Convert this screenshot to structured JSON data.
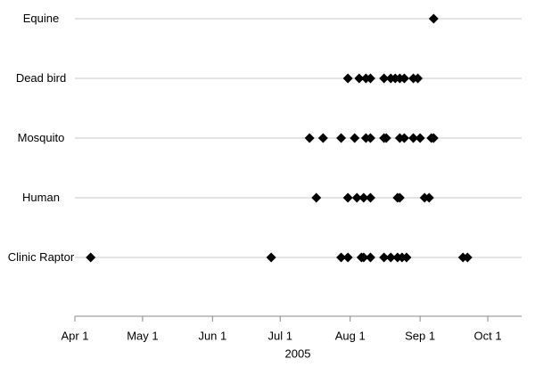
{
  "chart_data": {
    "type": "scatter",
    "xlabel": "2005",
    "marker_color": "#000000",
    "grid": true,
    "xlim": [
      "2005-04-01",
      "2005-10-16"
    ],
    "xticks": [
      {
        "value": "2005-04-01",
        "label": "Apr 1"
      },
      {
        "value": "2005-05-01",
        "label": "May 1"
      },
      {
        "value": "2005-06-01",
        "label": "Jun 1"
      },
      {
        "value": "2005-07-01",
        "label": "Jul 1"
      },
      {
        "value": "2005-08-01",
        "label": "Aug 1"
      },
      {
        "value": "2005-09-01",
        "label": "Sep 1"
      },
      {
        "value": "2005-10-01",
        "label": "Oct 1"
      }
    ],
    "series": [
      {
        "name": "Equine",
        "values": [
          "2005-09-07"
        ]
      },
      {
        "name": "Dead bird",
        "values": [
          "2005-07-31",
          "2005-08-05",
          "2005-08-08",
          "2005-08-10",
          "2005-08-16",
          "2005-08-19",
          "2005-08-21",
          "2005-08-23",
          "2005-08-25",
          "2005-08-29",
          "2005-08-31"
        ]
      },
      {
        "name": "Mosquito",
        "values": [
          "2005-07-14",
          "2005-07-20",
          "2005-07-28",
          "2005-08-03",
          "2005-08-08",
          "2005-08-10",
          "2005-08-16",
          "2005-08-17",
          "2005-08-23",
          "2005-08-25",
          "2005-08-29",
          "2005-09-01",
          "2005-09-06",
          "2005-09-07"
        ]
      },
      {
        "name": "Human",
        "values": [
          "2005-07-17",
          "2005-07-31",
          "2005-08-04",
          "2005-08-07",
          "2005-08-10",
          "2005-08-22",
          "2005-08-23",
          "2005-09-03",
          "2005-09-05"
        ]
      },
      {
        "name": "Clinic Raptor",
        "values": [
          "2005-04-08",
          "2005-06-27",
          "2005-07-28",
          "2005-07-31",
          "2005-08-06",
          "2005-08-07",
          "2005-08-10",
          "2005-08-16",
          "2005-08-19",
          "2005-08-22",
          "2005-08-24",
          "2005-08-26",
          "2005-09-20",
          "2005-09-22"
        ]
      }
    ]
  }
}
